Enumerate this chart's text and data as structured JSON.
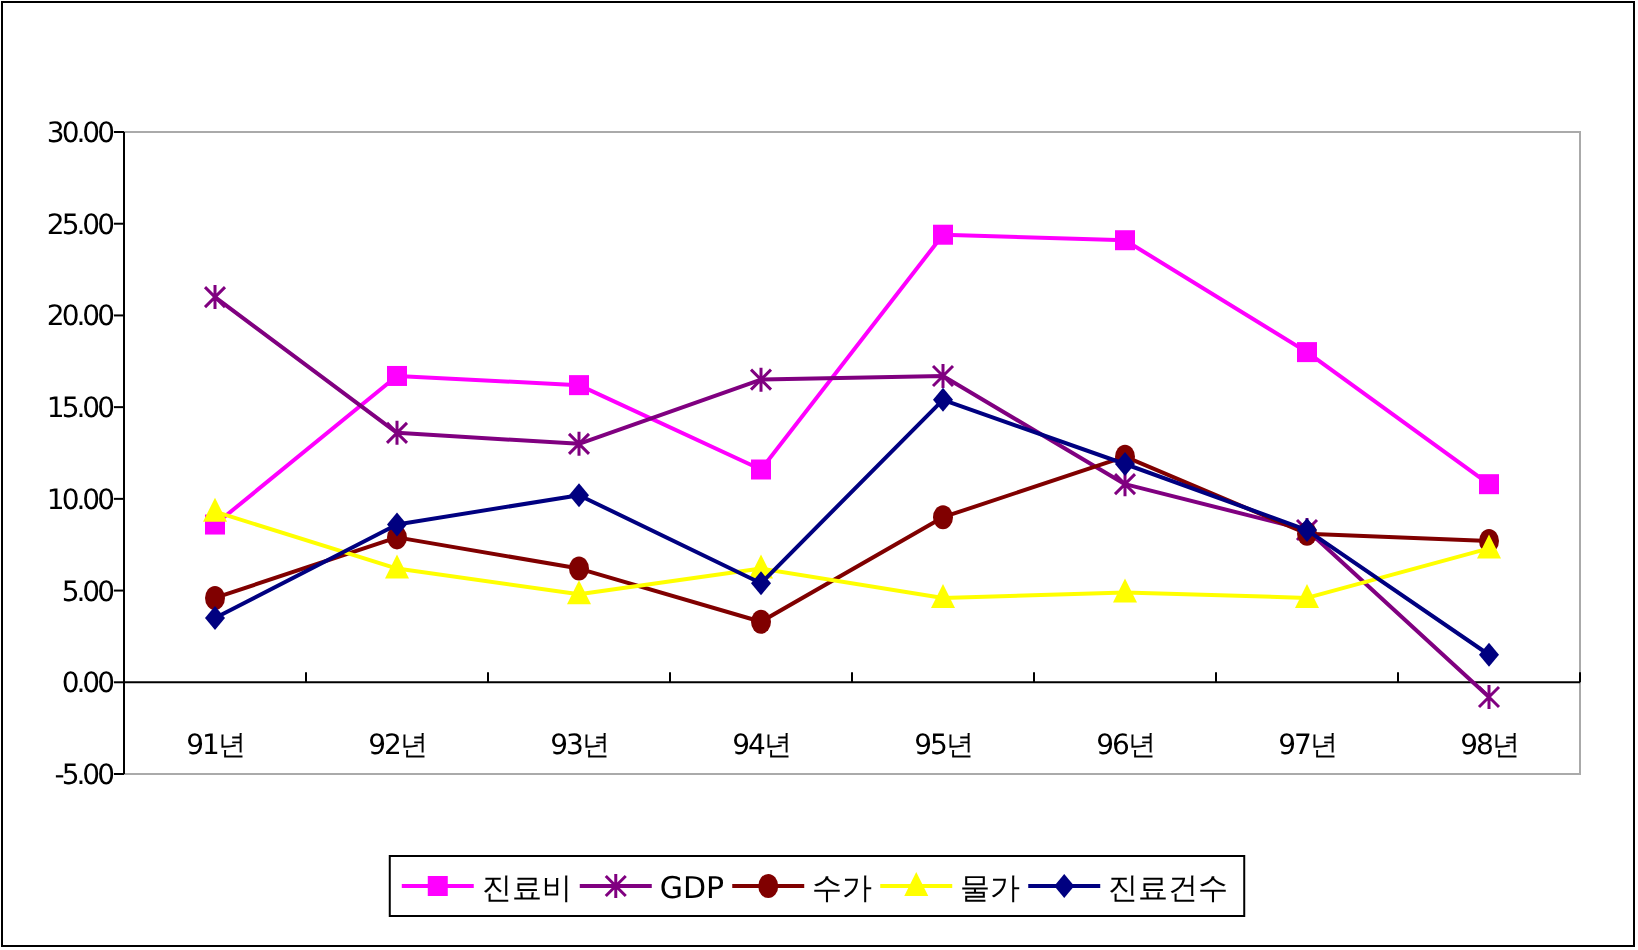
{
  "chart_data": {
    "type": "line",
    "categories": [
      "91년",
      "92년",
      "93년",
      "94년",
      "95년",
      "96년",
      "97년",
      "98년"
    ],
    "series": [
      {
        "name": "진료비",
        "color": "#ff00ff",
        "marker": "square",
        "values": [
          8.6,
          16.7,
          16.2,
          11.6,
          24.4,
          24.1,
          18.0,
          10.8
        ]
      },
      {
        "name": "GDP",
        "color": "#800080",
        "marker": "cross",
        "values": [
          21.0,
          13.6,
          13.0,
          16.5,
          16.7,
          10.8,
          8.3,
          -0.8
        ]
      },
      {
        "name": "수가",
        "color": "#800000",
        "marker": "circle",
        "values": [
          4.6,
          7.9,
          6.2,
          3.3,
          9.0,
          12.3,
          8.1,
          7.7
        ]
      },
      {
        "name": "물가",
        "color": "#ffff00",
        "marker": "triangle",
        "values": [
          9.3,
          6.2,
          4.8,
          6.2,
          4.6,
          4.9,
          4.6,
          7.3
        ]
      },
      {
        "name": "진료건수",
        "color": "#000080",
        "marker": "diamond",
        "values": [
          3.5,
          8.6,
          10.2,
          5.4,
          15.4,
          11.9,
          8.3,
          1.5
        ]
      }
    ],
    "ylim": [
      -5,
      30
    ],
    "yticks": [
      {
        "value": -5,
        "label": "-5.00"
      },
      {
        "value": 0,
        "label": "0.00"
      },
      {
        "value": 5,
        "label": "5.00"
      },
      {
        "value": 10,
        "label": "10.00"
      },
      {
        "value": 15,
        "label": "15.00"
      },
      {
        "value": 20,
        "label": "20.00"
      },
      {
        "value": 25,
        "label": "25.00"
      },
      {
        "value": 30,
        "label": "30.00"
      }
    ],
    "legend": "bottom"
  }
}
